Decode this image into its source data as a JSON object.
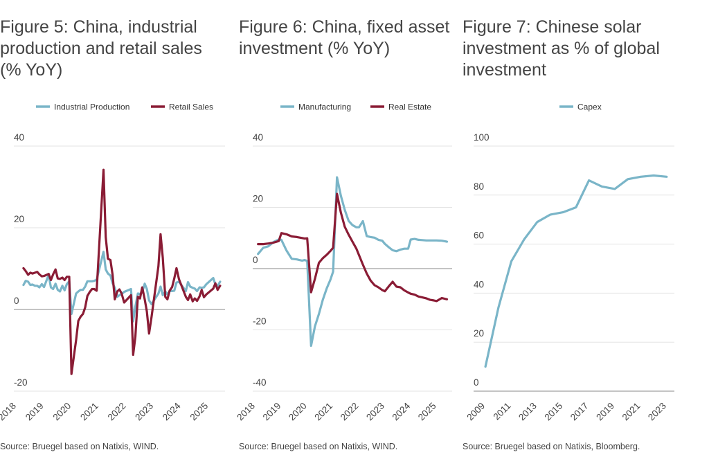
{
  "colors": {
    "blue": "#7ab5c8",
    "red": "#8a1c35",
    "grid": "#e3e3e3",
    "axis": "#8a8a8a"
  },
  "chart_data": [
    {
      "type": "line",
      "title": "Figure 5: China, industrial\nproduction and retail sales\n(% YoY)",
      "source": "Source: Bruegel based on Natixis, WIND.",
      "ylim": [
        -20,
        40
      ],
      "yticks": [
        -20,
        0,
        20,
        40
      ],
      "xlim": [
        2018,
        2025.6
      ],
      "xticks": [
        2018,
        2019,
        2020,
        2021,
        2022,
        2023,
        2024,
        2025
      ],
      "xlabel": "",
      "ylabel": "",
      "grid": true,
      "legend": "top",
      "series": [
        {
          "name": "Industrial Production",
          "color": "#7ab5c8",
          "x": [
            2018.25,
            2018.33,
            2018.42,
            2018.5,
            2018.58,
            2018.67,
            2018.75,
            2018.83,
            2018.92,
            2019.0,
            2019.17,
            2019.25,
            2019.33,
            2019.42,
            2019.5,
            2019.58,
            2019.67,
            2019.75,
            2019.83,
            2019.92,
            2020.0,
            2020.17,
            2020.25,
            2020.33,
            2020.42,
            2020.5,
            2020.58,
            2020.67,
            2020.75,
            2020.83,
            2020.92,
            2021.17,
            2021.25,
            2021.33,
            2021.42,
            2021.5,
            2021.58,
            2021.67,
            2021.75,
            2021.83,
            2021.92,
            2022.17,
            2022.25,
            2022.33,
            2022.42,
            2022.5,
            2022.58,
            2022.67,
            2022.75,
            2022.83,
            2022.92,
            2023.17,
            2023.25,
            2023.33,
            2023.42,
            2023.5,
            2023.58,
            2023.67,
            2023.75,
            2023.83,
            2023.92,
            2024.17,
            2024.25,
            2024.33,
            2024.42,
            2024.5,
            2024.58,
            2024.67,
            2024.75,
            2024.83,
            2024.92,
            2025.17,
            2025.25,
            2025.33,
            2025.42
          ],
          "y": [
            6.0,
            7.0,
            6.8,
            6.0,
            6.1,
            5.8,
            5.8,
            5.4,
            6.2,
            5.5,
            8.5,
            5.4,
            5.0,
            6.3,
            4.8,
            4.4,
            5.8,
            4.7,
            6.2,
            6.9,
            -1.1,
            3.9,
            4.4,
            4.8,
            4.8,
            5.6,
            6.9,
            6.9,
            6.9,
            7.0,
            7.3,
            14.1,
            9.8,
            8.8,
            8.3,
            6.4,
            5.3,
            3.1,
            3.5,
            3.8,
            4.3,
            5.0,
            -2.9,
            0.7,
            3.9,
            3.8,
            4.2,
            6.3,
            5.0,
            2.2,
            1.3,
            3.9,
            5.6,
            3.5,
            4.4,
            3.7,
            4.5,
            4.5,
            4.6,
            6.6,
            6.8,
            4.5,
            6.7,
            5.6,
            5.3,
            5.1,
            4.5,
            5.4,
            5.3,
            5.4,
            6.2,
            7.7,
            6.1,
            5.8,
            6.8
          ]
        },
        {
          "name": "Retail Sales",
          "color": "#8a1c35",
          "x": [
            2018.25,
            2018.33,
            2018.42,
            2018.5,
            2018.58,
            2018.67,
            2018.75,
            2018.83,
            2018.92,
            2019.0,
            2019.17,
            2019.25,
            2019.33,
            2019.42,
            2019.5,
            2019.58,
            2019.67,
            2019.75,
            2019.83,
            2019.92,
            2020.0,
            2020.17,
            2020.25,
            2020.33,
            2020.42,
            2020.5,
            2020.58,
            2020.67,
            2020.75,
            2020.83,
            2020.92,
            2021.17,
            2021.25,
            2021.33,
            2021.42,
            2021.5,
            2021.58,
            2021.67,
            2021.75,
            2021.83,
            2021.92,
            2022.17,
            2022.25,
            2022.33,
            2022.42,
            2022.5,
            2022.58,
            2022.67,
            2022.75,
            2022.83,
            2022.92,
            2023.17,
            2023.25,
            2023.33,
            2023.42,
            2023.5,
            2023.58,
            2023.67,
            2023.75,
            2023.83,
            2023.92,
            2024.17,
            2024.25,
            2024.33,
            2024.42,
            2024.5,
            2024.58,
            2024.67,
            2024.75,
            2024.83,
            2024.92,
            2025.17,
            2025.25,
            2025.33,
            2025.42
          ],
          "y": [
            10.1,
            9.4,
            8.5,
            9.0,
            8.8,
            9.0,
            9.2,
            8.6,
            8.1,
            8.2,
            8.7,
            7.2,
            8.6,
            9.8,
            7.6,
            7.5,
            7.8,
            7.2,
            8.0,
            8.0,
            -15.8,
            -7.5,
            -2.8,
            -1.8,
            -1.1,
            0.5,
            3.3,
            4.3,
            5.0,
            5.0,
            4.6,
            34.2,
            17.7,
            12.4,
            12.1,
            8.5,
            2.5,
            4.4,
            4.9,
            3.9,
            1.7,
            3.5,
            -11.1,
            -6.7,
            3.1,
            2.7,
            5.4,
            2.5,
            -0.5,
            -5.9,
            -1.8,
            10.6,
            18.4,
            12.7,
            3.1,
            2.5,
            4.6,
            5.5,
            7.6,
            10.1,
            7.4,
            3.1,
            2.3,
            3.7,
            2.0,
            2.7,
            2.1,
            3.2,
            4.8,
            3.0,
            3.7,
            5.1,
            6.4,
            4.8,
            5.8
          ]
        }
      ]
    },
    {
      "type": "line",
      "title": "Figure 6: China, fixed asset\ninvestment (% YoY)",
      "source": "Source: Bruegel based on Natixis, WIND.",
      "ylim": [
        -40,
        40
      ],
      "yticks": [
        -40,
        -20,
        0,
        20,
        40
      ],
      "xlim": [
        2018,
        2025.6
      ],
      "xticks": [
        2018,
        2019,
        2020,
        2021,
        2022,
        2023,
        2024,
        2025
      ],
      "xlabel": "",
      "ylabel": "",
      "grid": true,
      "legend": "top",
      "series": [
        {
          "name": "Manufacturing",
          "color": "#7ab5c8",
          "x": [
            2018.1,
            2018.3,
            2018.5,
            2018.7,
            2018.9,
            2019.0,
            2019.2,
            2019.4,
            2019.6,
            2019.8,
            2019.9,
            2020.0,
            2020.15,
            2020.3,
            2020.45,
            2020.6,
            2020.75,
            2020.9,
            2021.0,
            2021.15,
            2021.3,
            2021.45,
            2021.6,
            2021.75,
            2021.9,
            2022.0,
            2022.15,
            2022.3,
            2022.45,
            2022.6,
            2022.75,
            2022.9,
            2023.0,
            2023.15,
            2023.3,
            2023.45,
            2023.6,
            2023.75,
            2023.9,
            2024.0,
            2024.15,
            2024.3,
            2024.45,
            2024.6,
            2024.75,
            2024.9,
            2025.0,
            2025.2,
            2025.4
          ],
          "y": [
            4.8,
            6.8,
            7.3,
            8.7,
            9.5,
            9.4,
            5.9,
            3.2,
            3.0,
            2.6,
            2.8,
            2.5,
            -25.2,
            -18.8,
            -14.8,
            -10.2,
            -6.5,
            -3.5,
            -1.0,
            29.8,
            23.8,
            19.2,
            15.6,
            14.2,
            13.5,
            13.5,
            15.5,
            10.6,
            10.3,
            10.1,
            9.4,
            9.1,
            8.1,
            7.0,
            6.0,
            5.7,
            6.2,
            6.5,
            6.5,
            9.5,
            9.7,
            9.4,
            9.3,
            9.2,
            9.2,
            9.2,
            9.2,
            9.1,
            8.8
          ]
        },
        {
          "name": "Real Estate",
          "color": "#8a1c35",
          "x": [
            2018.1,
            2018.3,
            2018.5,
            2018.7,
            2018.9,
            2019.0,
            2019.2,
            2019.4,
            2019.6,
            2019.8,
            2019.9,
            2020.0,
            2020.15,
            2020.3,
            2020.45,
            2020.6,
            2020.75,
            2020.9,
            2021.0,
            2021.15,
            2021.3,
            2021.45,
            2021.6,
            2021.75,
            2021.9,
            2022.0,
            2022.15,
            2022.3,
            2022.45,
            2022.6,
            2022.75,
            2022.9,
            2023.0,
            2023.15,
            2023.3,
            2023.45,
            2023.6,
            2023.75,
            2023.9,
            2024.0,
            2024.15,
            2024.3,
            2024.45,
            2024.6,
            2024.75,
            2024.9,
            2025.0,
            2025.2,
            2025.4
          ],
          "y": [
            8.0,
            8.0,
            8.2,
            8.5,
            9.0,
            11.6,
            11.2,
            10.5,
            10.3,
            10.0,
            9.8,
            9.9,
            -7.7,
            -3.3,
            1.9,
            3.4,
            4.5,
            5.8,
            6.8,
            24.4,
            18.3,
            13.7,
            11.1,
            8.8,
            6.5,
            4.4,
            1.3,
            -1.6,
            -3.9,
            -5.4,
            -6.1,
            -7.0,
            -7.4,
            -5.8,
            -4.3,
            -5.9,
            -6.1,
            -7.1,
            -7.8,
            -8.2,
            -8.5,
            -9.1,
            -9.4,
            -9.7,
            -10.2,
            -10.4,
            -10.6,
            -9.6,
            -10.0
          ]
        }
      ]
    },
    {
      "type": "line",
      "title": "Figure 7: Chinese solar\ninvestment as % of global\ninvestment",
      "source": "Source: Bruegel based on Natixis, Bloomberg.",
      "ylim": [
        0,
        100
      ],
      "yticks": [
        0,
        20,
        40,
        60,
        80,
        100
      ],
      "xlim": [
        2008.3,
        2023.6
      ],
      "xticks": [
        2009,
        2011,
        2013,
        2015,
        2017,
        2019,
        2021,
        2023
      ],
      "xlabel": "",
      "ylabel": "",
      "grid": true,
      "legend": "top",
      "series": [
        {
          "name": "Capex",
          "color": "#7ab5c8",
          "x": [
            2009,
            2010,
            2011,
            2012,
            2013,
            2014,
            2015,
            2016,
            2017,
            2018,
            2019,
            2020,
            2021,
            2022,
            2023
          ],
          "y": [
            10,
            34,
            53,
            62,
            69,
            72,
            73,
            75,
            86,
            83.5,
            82.5,
            86.5,
            87.5,
            88,
            87.5
          ]
        }
      ]
    }
  ]
}
